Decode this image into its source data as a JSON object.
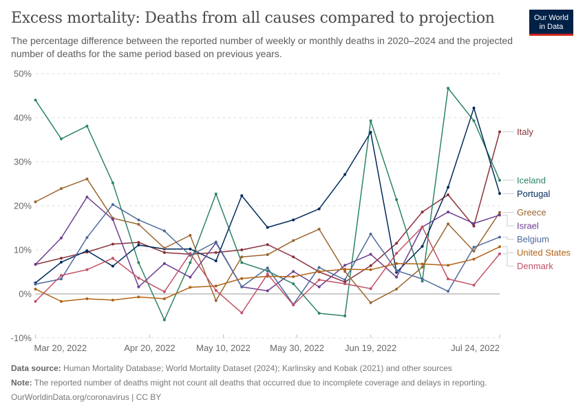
{
  "header": {
    "title": "Excess mortality: Deaths from all causes compared to projection",
    "subtitle": "The percentage difference between the reported number of weekly or monthly deaths in 2020–2024 and the projected number of deaths for the same period based on previous years.",
    "logo_line1": "Our World",
    "logo_line2": "in Data"
  },
  "footer": {
    "source_label": "Data source:",
    "source_text": " Human Mortality Database; World Mortality Dataset (2024); Karlinsky and Kobak (2021) and other sources",
    "note_label": "Note:",
    "note_text": " The reported number of deaths might not count all deaths that occurred due to incomplete coverage and delays in reporting.",
    "credit": "OurWorldinData.org/coronavirus | CC BY"
  },
  "chart_data": {
    "type": "line",
    "title": "Excess mortality: Deaths from all causes compared to projection",
    "xlabel": "",
    "ylabel": "",
    "ylim": [
      -10,
      50
    ],
    "yticks": [
      -10,
      0,
      10,
      20,
      30,
      40,
      50
    ],
    "ytick_labels": [
      "-10%",
      "0%",
      "10%",
      "20%",
      "30%",
      "40%",
      "50%"
    ],
    "grid": true,
    "legend_placement": "right",
    "x": [
      "2022-03-20",
      "2022-03-27",
      "2022-04-03",
      "2022-04-10",
      "2022-04-17",
      "2022-04-24",
      "2022-05-01",
      "2022-05-08",
      "2022-05-15",
      "2022-05-22",
      "2022-05-29",
      "2022-06-05",
      "2022-06-12",
      "2022-06-19",
      "2022-06-26",
      "2022-07-03",
      "2022-07-10",
      "2022-07-17",
      "2022-07-24"
    ],
    "xticks": [
      {
        "date": "2022-03-20",
        "label": "Mar 20, 2022"
      },
      {
        "date": "2022-04-20",
        "label": "Apr 20, 2022"
      },
      {
        "date": "2022-05-10",
        "label": "May 10, 2022"
      },
      {
        "date": "2022-05-30",
        "label": "May 30, 2022"
      },
      {
        "date": "2022-06-19",
        "label": "Jun 19, 2022"
      },
      {
        "date": "2022-07-24",
        "label": "Jul 24, 2022"
      }
    ],
    "series": [
      {
        "name": "Italy",
        "color": "#883039",
        "values": [
          6.7,
          8.1,
          9.5,
          11.3,
          11.7,
          9.4,
          9.0,
          9.4,
          10.0,
          11.2,
          8.4,
          5.0,
          2.7,
          6.4,
          11.5,
          18.6,
          22.5,
          15.4,
          36.8
        ]
      },
      {
        "name": "Iceland",
        "color": "#2c8465",
        "values": [
          44.0,
          35.2,
          38.1,
          25.2,
          7.1,
          -5.9,
          7.1,
          22.7,
          7.1,
          5.2,
          2.3,
          -4.4,
          -5.0,
          39.3,
          21.4,
          2.9,
          46.7,
          39.3,
          25.8
        ]
      },
      {
        "name": "Portugal",
        "color": "#00295b",
        "values": [
          2.5,
          7.2,
          9.8,
          6.3,
          11.1,
          10.2,
          10.2,
          7.5,
          22.3,
          15.1,
          16.8,
          19.3,
          27.1,
          36.7,
          4.9,
          10.8,
          24.2,
          42.2,
          22.8
        ]
      },
      {
        "name": "Greece",
        "color": "#9a652e",
        "values": [
          20.9,
          23.9,
          26.1,
          17.2,
          15.8,
          10.4,
          13.3,
          -1.5,
          8.4,
          8.9,
          12.1,
          14.7,
          5.1,
          -2.0,
          1.1,
          6.1,
          15.9,
          9.7,
          18.5
        ]
      },
      {
        "name": "Israel",
        "color": "#6d3e91",
        "values": [
          6.7,
          12.7,
          22.0,
          16.9,
          1.6,
          6.9,
          3.8,
          11.6,
          1.6,
          0.7,
          5.1,
          1.6,
          6.5,
          9.0,
          3.8,
          15.2,
          18.6,
          16.0,
          17.9
        ]
      },
      {
        "name": "Belgium",
        "color": "#4c6a9c",
        "values": [
          2.2,
          3.4,
          12.8,
          20.3,
          16.8,
          14.3,
          8.75,
          11.8,
          1.6,
          5.9,
          -2.4,
          6.0,
          3.2,
          13.6,
          5.3,
          3.4,
          0.6,
          10.6,
          12.9
        ]
      },
      {
        "name": "United States",
        "color": "#b16214",
        "values": [
          1.1,
          -1.7,
          -1.1,
          -1.4,
          -0.7,
          -1.1,
          1.5,
          1.8,
          3.5,
          4.0,
          3.9,
          5.1,
          5.6,
          5.5,
          6.9,
          6.8,
          6.5,
          7.9,
          10.7
        ]
      },
      {
        "name": "Denmark",
        "color": "#c15065",
        "values": [
          -1.7,
          4.2,
          5.5,
          8.1,
          3.6,
          0.5,
          9.2,
          0.8,
          -4.3,
          4.5,
          -2.5,
          3.2,
          2.3,
          1.2,
          9.2,
          15.2,
          3.4,
          2.0,
          9.1
        ]
      }
    ]
  }
}
